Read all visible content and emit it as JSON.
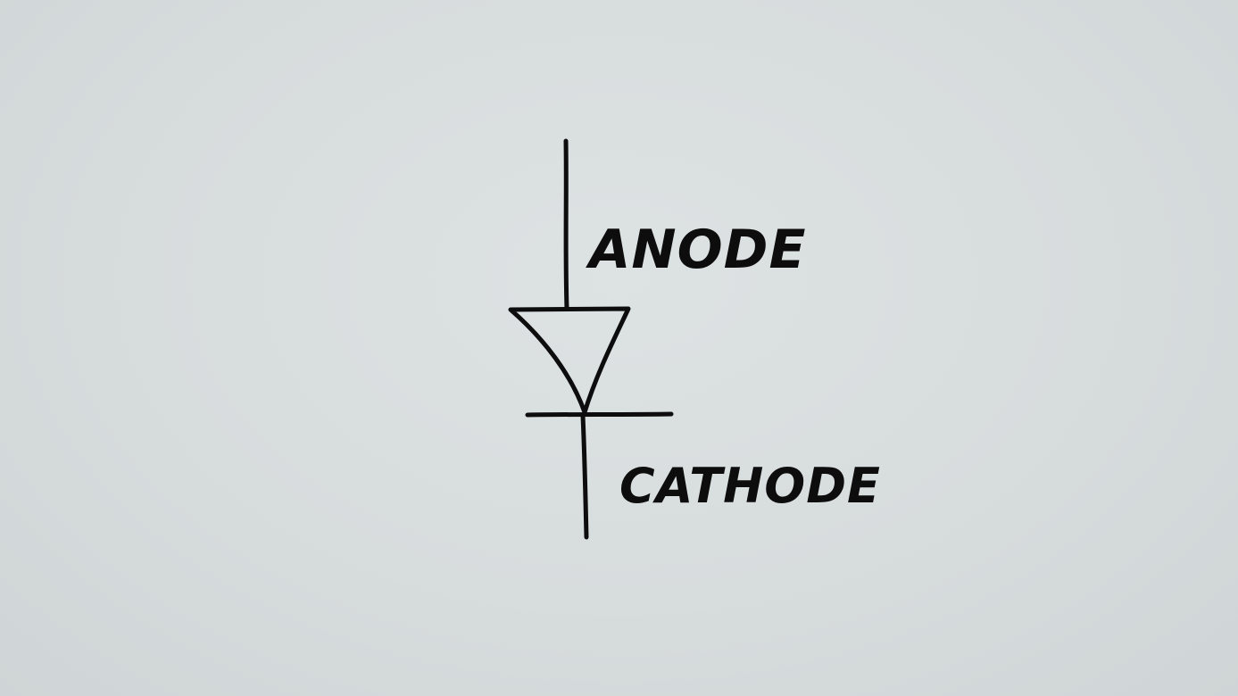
{
  "diagram": {
    "anode_label": "ANODE",
    "cathode_label": "CATHODE",
    "ink_color": "#0d0d0d",
    "background_color": "#d8dddf"
  }
}
